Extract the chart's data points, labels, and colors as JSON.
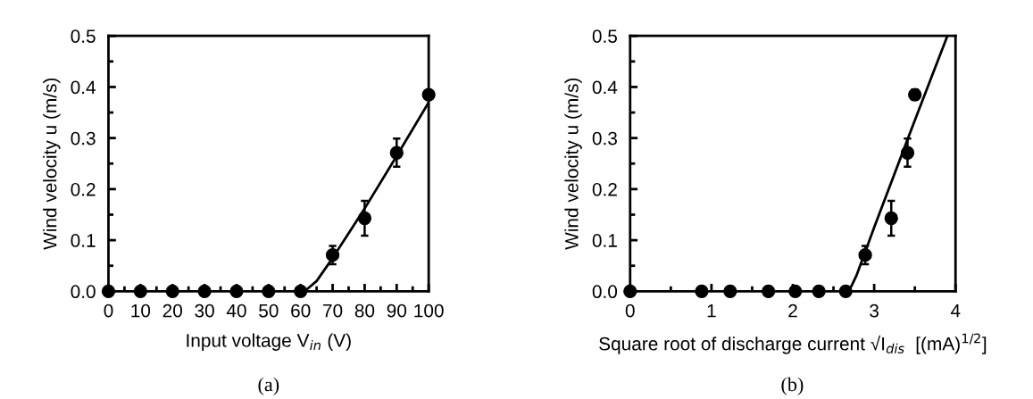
{
  "chart_data": [
    {
      "type": "scatter",
      "xlabel": "Input voltage V$_{in}$ (V)",
      "ylabel": "Wind velocity u (m/s)",
      "annotations": [
        "(a)"
      ],
      "xlim": [
        0,
        100
      ],
      "xticks": [
        0,
        10,
        20,
        30,
        40,
        50,
        60,
        70,
        80,
        90,
        100
      ],
      "ylim": [
        0,
        0.5
      ],
      "yticks": [
        {
          "value": 0,
          "label": "0.0"
        },
        0.1,
        0.2,
        0.3,
        0.4,
        0.5
      ],
      "grid": false,
      "legend": false,
      "series": [
        {
          "marker": "circle",
          "color": "#000000",
          "x": [
            0,
            10,
            20,
            30,
            40,
            50,
            60,
            70,
            80,
            90,
            100
          ],
          "values": [
            0,
            0,
            0,
            0,
            0,
            0,
            0,
            0.071,
            0.143,
            0.271,
            0.385
          ],
          "errors": [
            null,
            null,
            null,
            null,
            null,
            null,
            null,
            0.018,
            [
              0.109,
              0.177
            ],
            [
              0.244,
              0.299
            ],
            0.008
          ]
        },
        {
          "type": "line",
          "color": "#000000",
          "line_style": "solid",
          "x": [
            60,
            62,
            65,
            70,
            80,
            90,
            100
          ],
          "values": [
            0,
            0.004,
            0.02,
            0.065,
            0.162,
            0.265,
            0.37
          ]
        }
      ]
    },
    {
      "type": "scatter",
      "xlabel": "Square root of discharge current √I$_{dis}$  [(mA)$^{1/2}$]",
      "ylabel": "Wind velocity u (m/s)",
      "annotations": [
        "(b)"
      ],
      "xlim": [
        0,
        4
      ],
      "xticks": [
        0,
        1,
        2,
        3,
        4
      ],
      "ylim": [
        0,
        0.5
      ],
      "yticks": [
        {
          "value": 0,
          "label": "0.0"
        },
        0.1,
        0.2,
        0.3,
        0.4,
        0.5
      ],
      "grid": false,
      "legend": false,
      "series": [
        {
          "marker": "circle",
          "color": "#000000",
          "x": [
            0,
            0.88,
            1.23,
            1.7,
            2.03,
            2.32,
            2.65,
            2.89,
            3.21,
            3.41,
            3.5
          ],
          "values": [
            0,
            0,
            0,
            0,
            0,
            0,
            0,
            0.071,
            0.143,
            0.271,
            0.385
          ],
          "errors": [
            null,
            null,
            null,
            null,
            null,
            null,
            null,
            0.018,
            [
              0.109,
              0.177
            ],
            [
              0.244,
              0.299
            ],
            0.01
          ]
        },
        {
          "type": "line",
          "color": "#000000",
          "line_style": "solid",
          "x": [
            2.68,
            2.72,
            2.78,
            2.85,
            3.0,
            3.5,
            3.9
          ],
          "values": [
            0,
            0.01,
            0.03,
            0.06,
            0.125,
            0.335,
            0.5
          ]
        }
      ]
    }
  ]
}
